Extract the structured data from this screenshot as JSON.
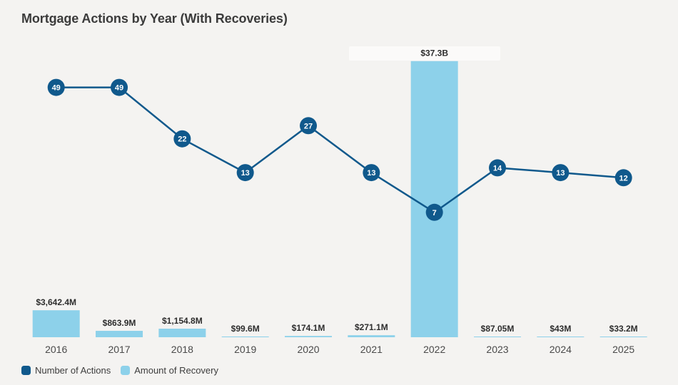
{
  "title": "Mortgage Actions by Year (With Recoveries)",
  "chart_data": {
    "type": "combo-line-bar",
    "categories": [
      "2016",
      "2017",
      "2018",
      "2019",
      "2020",
      "2021",
      "2022",
      "2023",
      "2024",
      "2025"
    ],
    "series": [
      {
        "name": "Number of Actions",
        "type": "line",
        "axis_scale": "log",
        "values": [
          49,
          49,
          22,
          13,
          27,
          13,
          7,
          14,
          13,
          12
        ],
        "color": "#10598c"
      },
      {
        "name": "Amount of Recovery",
        "type": "bar",
        "axis_scale": "linear",
        "values_usd_millions": [
          3642.4,
          863.9,
          1154.8,
          99.6,
          174.1,
          271.1,
          37300,
          87.05,
          43,
          33.2
        ],
        "labels": [
          "$3,642.4M",
          "$863.9M",
          "$1,154.8M",
          "$99.6M",
          "$174.1M",
          "$271.1M",
          "$37.3B",
          "$87.05M",
          "$43M",
          "$33.2M"
        ],
        "color": "#8dd1ea"
      }
    ],
    "highlighted_label": "$37.3B",
    "grid": false,
    "legend_position": "bottom-left",
    "background": "#f4f3f1"
  },
  "legend": {
    "items": [
      {
        "label": "Number of Actions",
        "color": "#10598c"
      },
      {
        "label": "Amount of Recovery",
        "color": "#8dd1ea"
      }
    ]
  }
}
